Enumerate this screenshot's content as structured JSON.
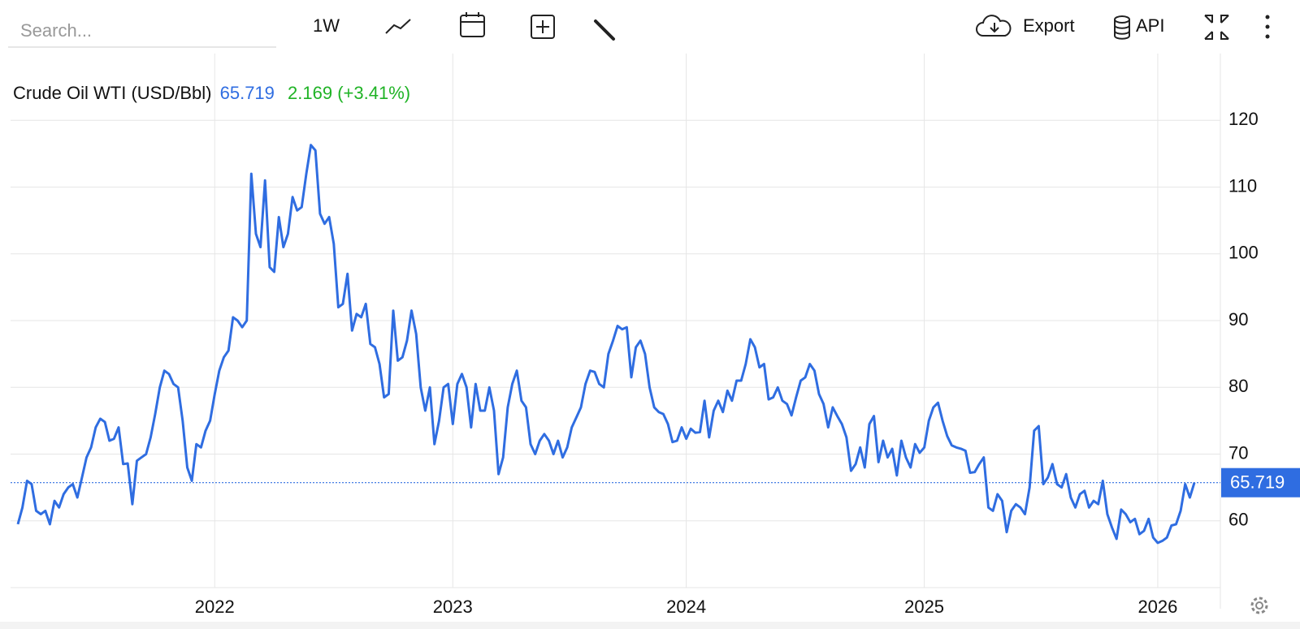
{
  "toolbar": {
    "search": "Search...",
    "period": "1W",
    "export": "Export",
    "api": "API"
  },
  "chart_data": {
    "type": "line",
    "title": "Crude Oil WTI (USD/Bbl)",
    "last": 65.719,
    "change": "2.169 (+3.41%)",
    "categories": [
      null,
      null,
      null,
      null,
      null,
      null,
      null,
      null,
      null,
      null,
      null,
      null,
      null,
      null,
      null,
      null,
      null,
      null,
      null,
      null,
      null,
      null,
      null,
      null,
      null,
      null,
      null,
      null,
      null,
      null,
      null,
      null,
      null,
      null,
      null,
      null,
      null,
      null,
      null,
      null,
      null,
      null,
      null,
      "2022",
      null,
      null,
      null,
      null,
      null,
      null,
      null,
      null,
      null,
      null,
      null,
      null,
      null,
      null,
      null,
      null,
      null,
      null,
      null,
      null,
      null,
      null,
      null,
      null,
      null,
      null,
      null,
      null,
      null,
      null,
      null,
      null,
      null,
      null,
      null,
      null,
      null,
      null,
      null,
      null,
      null,
      null,
      null,
      null,
      null,
      null,
      null,
      null,
      null,
      null,
      null,
      "2023",
      null,
      null,
      null,
      null,
      null,
      null,
      null,
      null,
      null,
      null,
      null,
      null,
      null,
      null,
      null,
      null,
      null,
      null,
      null,
      null,
      null,
      null,
      null,
      null,
      null,
      null,
      null,
      null,
      null,
      null,
      null,
      null,
      null,
      null,
      null,
      null,
      null,
      null,
      null,
      null,
      null,
      null,
      null,
      null,
      null,
      null,
      null,
      null,
      null,
      null,
      "2024",
      null,
      null,
      null,
      null,
      null,
      null,
      null,
      null,
      null,
      null,
      null,
      null,
      null,
      null,
      null,
      null,
      null,
      null,
      null,
      null,
      null,
      null,
      null,
      null,
      null,
      null,
      null,
      null,
      null,
      null,
      null,
      null,
      null,
      null,
      null,
      null,
      null,
      null,
      null,
      null,
      null,
      null,
      null,
      null,
      null,
      null,
      null,
      null,
      null,
      null,
      null,
      "2025",
      null,
      null,
      null,
      null,
      null,
      null,
      null,
      null,
      null,
      null,
      null,
      null,
      null,
      null,
      null,
      null,
      null,
      null,
      null,
      null,
      null,
      null,
      null,
      null,
      null,
      null,
      null,
      null,
      null,
      null,
      null,
      null,
      null,
      null,
      null,
      null,
      null,
      null,
      null,
      null,
      null,
      null,
      null,
      null,
      null,
      null,
      null,
      null,
      null,
      null,
      "2026",
      null,
      null,
      null,
      null,
      null,
      null,
      null,
      null
    ],
    "series": [
      {
        "name": "Crude Oil WTI (USD/Bbl)",
        "color": "#2f6de1",
        "values": [
          59.5,
          62,
          66,
          65.5,
          61.5,
          61,
          61.5,
          59.5,
          63,
          62,
          64,
          65,
          65.5,
          63.5,
          66.5,
          69.5,
          71,
          74,
          75.3,
          74.8,
          72,
          72.3,
          74,
          68.5,
          68.6,
          62.5,
          69,
          69.5,
          70,
          72.5,
          76,
          80,
          82.5,
          82,
          80.5,
          80,
          75,
          68,
          66,
          71.5,
          71,
          73.5,
          75,
          79,
          82.5,
          84.5,
          85.5,
          90.5,
          90,
          89,
          90,
          112,
          103,
          101,
          111,
          98,
          97.3,
          105.5,
          101,
          103,
          108.5,
          106.5,
          107,
          112,
          116.3,
          115.5,
          106,
          104.5,
          105.5,
          101.5,
          92,
          92.5,
          97,
          88.5,
          91,
          90.5,
          92.5,
          86.5,
          86,
          83.5,
          78.5,
          79,
          91.5,
          84,
          84.5,
          87,
          91.5,
          88,
          80,
          76.5,
          80,
          71.5,
          75,
          80,
          80.5,
          74.5,
          80.5,
          82,
          80,
          74,
          80.5,
          76.5,
          76.5,
          80,
          76.5,
          67,
          69.5,
          77,
          80.5,
          82.5,
          78,
          77,
          71.5,
          70,
          72,
          73,
          72,
          70,
          72,
          69.5,
          71,
          74,
          75.5,
          77,
          80.5,
          82.5,
          82.3,
          80.5,
          80,
          85,
          87,
          89.2,
          88.7,
          89,
          81.5,
          86,
          87,
          85,
          80,
          77,
          76.3,
          76,
          74.5,
          71.8,
          72,
          74,
          72.3,
          73.8,
          73.2,
          73.3,
          78,
          72.5,
          76.5,
          78,
          76.3,
          79.5,
          78,
          81,
          81,
          83.5,
          87.2,
          86,
          83,
          83.5,
          78.2,
          78.5,
          80,
          78,
          77.5,
          75.8,
          78.5,
          81,
          81.5,
          83.5,
          82.5,
          79,
          77.5,
          74,
          77,
          75.7,
          74.5,
          72.5,
          67.5,
          68.5,
          71,
          68,
          74.5,
          75.7,
          68.8,
          72,
          69.5,
          70.8,
          66.8,
          72,
          69.5,
          68,
          71.5,
          70.2,
          71,
          75,
          77,
          77.7,
          75,
          72.7,
          71.3,
          71,
          70.8,
          70.5,
          67.2,
          67.3,
          68.5,
          69.5,
          62,
          61.5,
          64,
          63,
          58.3,
          61.5,
          62.5,
          62,
          61,
          65,
          73.5,
          74.2,
          65.5,
          66.5,
          68.5,
          65.5,
          65,
          67,
          63.5,
          62,
          64,
          64.5,
          62,
          63,
          62.5,
          66,
          61,
          59,
          57.3,
          61.7,
          61,
          59.8,
          60.3,
          58,
          58.5,
          60.3,
          57.5,
          56.7,
          57,
          57.5,
          59.3,
          59.5,
          61.5,
          65.5,
          63.5,
          65.719
        ]
      }
    ],
    "ylim": [
      50,
      130
    ],
    "yticks": [
      60,
      70,
      80,
      90,
      100,
      110,
      120
    ],
    "grid": true
  }
}
